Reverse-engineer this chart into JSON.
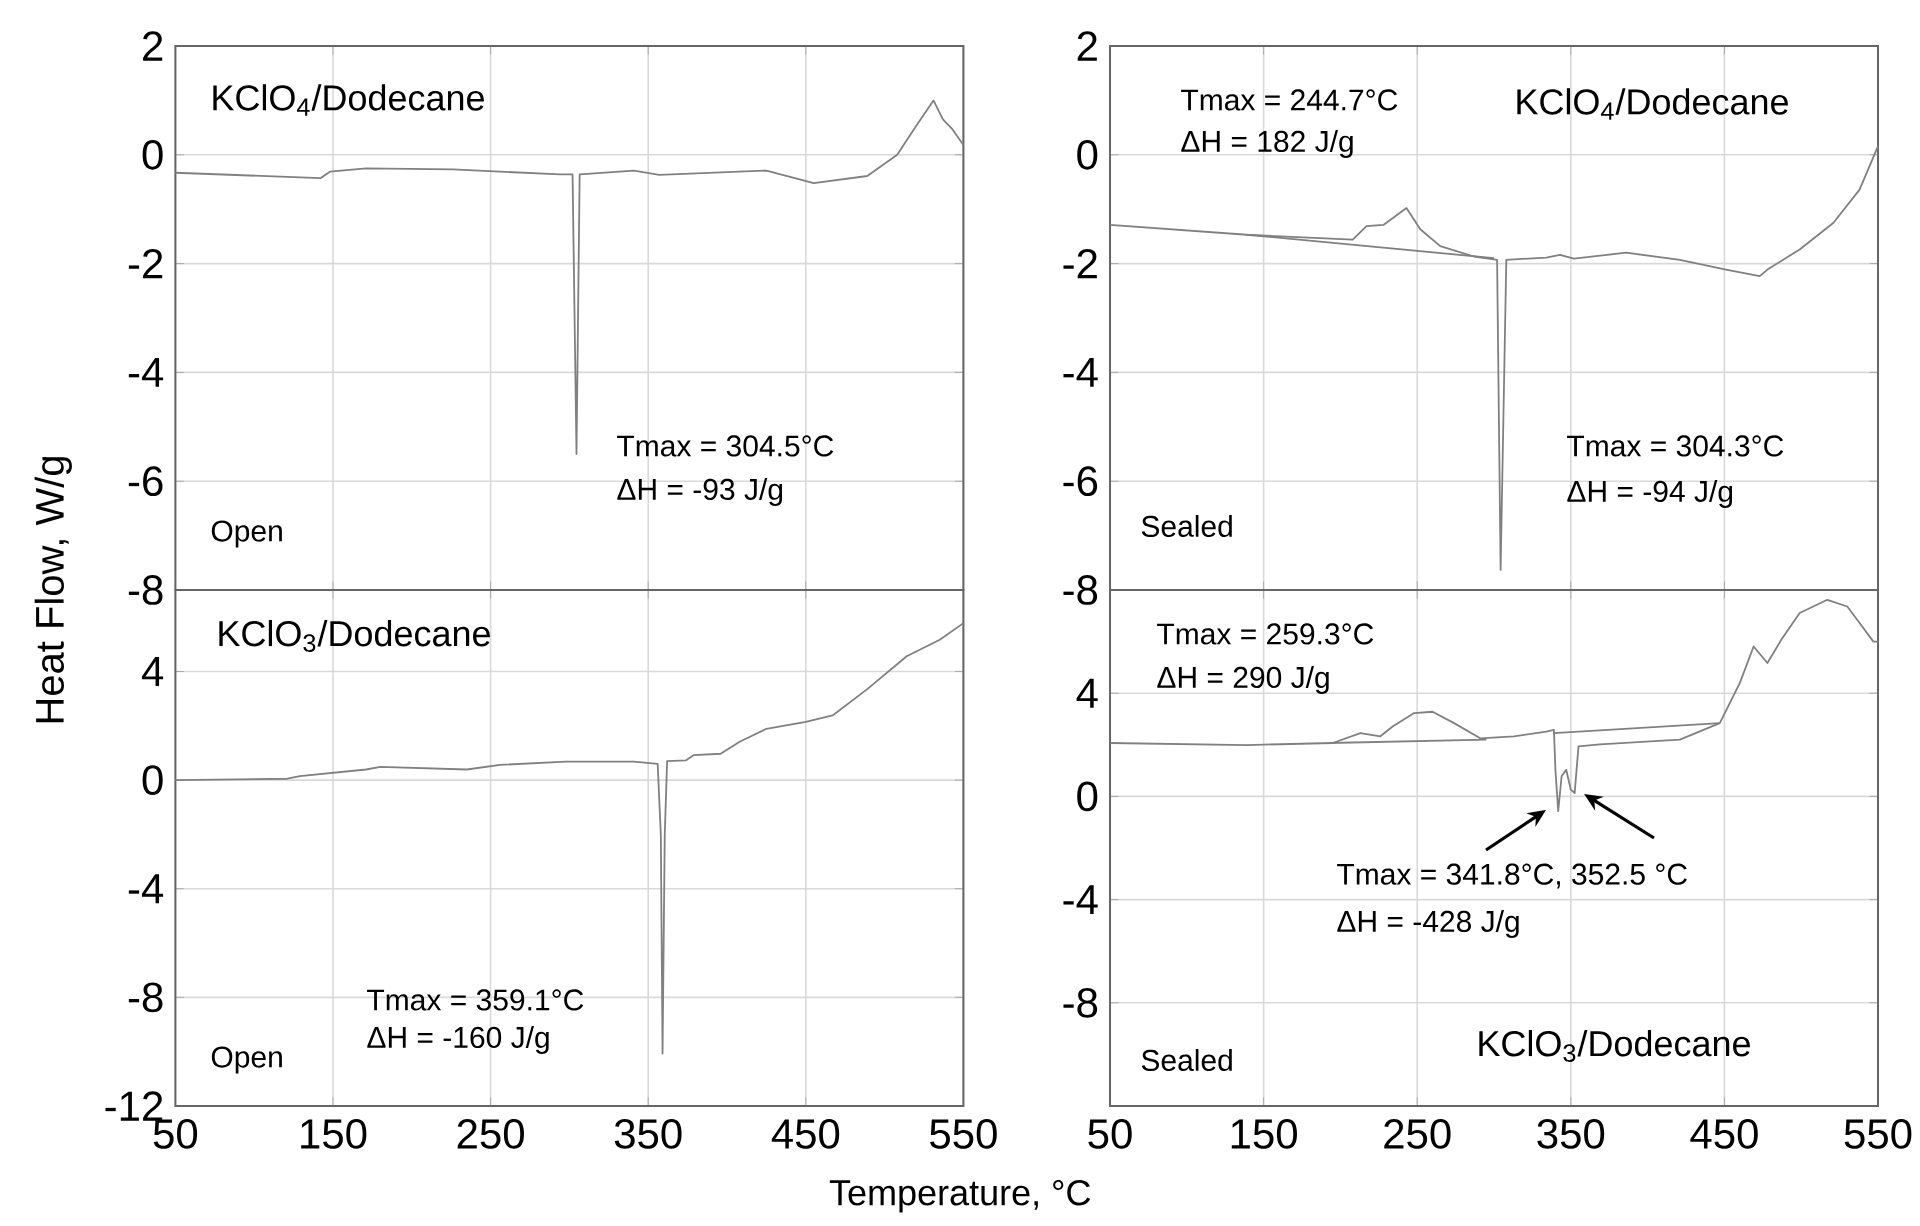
{
  "chart_data": [
    {
      "type": "line",
      "title": "KClO$_{4}$/Dodecane",
      "ylabel": "Heat Flow, W/g",
      "xlim": [
        50,
        550
      ],
      "xticks": [
        50,
        150,
        250,
        350,
        450,
        550
      ],
      "ylim": [
        -8,
        2
      ],
      "yticks": [
        -8,
        -6,
        -4,
        -2,
        0,
        2
      ],
      "grid": true,
      "tick_labels": "y",
      "annotations": [
        "Tmax = 304.5°C",
        "ΔH = -93 J/g",
        "Open"
      ],
      "series": [
        {
          "color": "#808080",
          "x": [
            50,
            142,
            148,
            171,
            226,
            294,
            302,
            304.5,
            306.5,
            341,
            357,
            425,
            455,
            489,
            508,
            520,
            531,
            537,
            543,
            550
          ],
          "values": [
            -0.33,
            -0.43,
            -0.31,
            -0.25,
            -0.27,
            -0.36,
            -0.36,
            -5.5,
            -0.36,
            -0.29,
            -0.37,
            -0.29,
            -0.52,
            -0.39,
            0.0,
            0.53,
            1.0,
            0.65,
            0.47,
            0.18
          ]
        }
      ]
    },
    {
      "type": "line",
      "title": "KClO$_{4}$/Dodecane",
      "xlim": [
        50,
        550
      ],
      "xticks": [
        50,
        150,
        250,
        350,
        450,
        550
      ],
      "ylim": [
        -8,
        2
      ],
      "yticks": [
        -8,
        -6,
        -4,
        -2,
        0,
        2
      ],
      "grid": true,
      "tick_labels": "y",
      "annotations": [
        "Tmax = 244.7°C",
        "ΔH = 182 J/g",
        "Tmax = 304.3°C",
        "ΔH = -94 J/g",
        "Sealed"
      ],
      "series": [
        {
          "color": "#808080",
          "x": [
            50,
            139,
            208,
            217,
            228,
            243,
            252,
            265,
            287,
            302,
            304.3,
            308,
            334,
            343,
            352,
            386,
            421,
            451,
            473,
            478,
            499,
            521,
            538,
            550
          ],
          "values": [
            -1.29,
            -1.47,
            -1.56,
            -1.31,
            -1.29,
            -0.98,
            -1.37,
            -1.68,
            -1.87,
            -1.93,
            -7.63,
            -1.93,
            -1.89,
            -1.84,
            -1.91,
            -1.8,
            -1.93,
            -2.11,
            -2.23,
            -2.11,
            -1.74,
            -1.25,
            -0.64,
            0.16
          ]
        },
        {
          "color": "#808080",
          "x": [
            139,
            300
          ],
          "values": [
            -1.47,
            -1.9
          ]
        }
      ]
    },
    {
      "type": "line",
      "title": "KClO$_{3}$/Dodecane",
      "xlabel": "Temperature, °C",
      "xlim": [
        50,
        550
      ],
      "xticks": [
        50,
        150,
        250,
        350,
        450,
        550
      ],
      "ylim": [
        -12,
        7
      ],
      "yticks": [
        -12,
        -8,
        -4,
        0,
        4
      ],
      "grid": true,
      "annotations": [
        "Tmax = 359.1°C",
        "ΔH = -160 J/g",
        "Open"
      ],
      "series": [
        {
          "color": "#808080",
          "x": [
            50,
            121,
            129,
            171,
            180,
            235,
            256,
            298,
            341,
            356,
            358,
            359.1,
            360.5,
            362,
            374,
            379,
            396,
            408,
            425,
            450,
            467,
            489,
            514,
            535,
            550
          ],
          "values": [
            0,
            0.05,
            0.15,
            0.39,
            0.49,
            0.39,
            0.56,
            0.68,
            0.68,
            0.6,
            -2,
            -10.07,
            -2,
            0.7,
            0.73,
            0.92,
            0.97,
            1.41,
            1.89,
            2.14,
            2.38,
            3.35,
            4.56,
            5.17,
            5.78
          ]
        }
      ]
    },
    {
      "type": "line",
      "title": "KClO$_{3}$/Dodecane",
      "xlim": [
        50,
        550
      ],
      "xticks": [
        50,
        150,
        250,
        350,
        450,
        550
      ],
      "ylim": [
        -12,
        8
      ],
      "yticks": [
        -8,
        -4,
        0,
        4
      ],
      "grid": true,
      "annotations": [
        "Tmax = 259.3°C",
        "ΔH = 290 J/g",
        "Tmax = 341.8°C,  352.5 °C",
        "ΔH = -428 J/g",
        "Sealed"
      ],
      "series": [
        {
          "color": "#808080",
          "x": [
            50,
            139,
            195,
            213,
            226,
            234,
            248,
            260,
            274,
            291,
            313,
            334,
            339,
            340,
            341.8,
            344,
            347,
            350,
            352.5,
            355,
            369,
            421,
            447,
            460,
            469,
            478,
            487,
            499,
            517,
            530,
            538,
            547,
            550
          ],
          "values": [
            2.07,
            1.99,
            2.07,
            2.45,
            2.33,
            2.71,
            3.23,
            3.28,
            2.84,
            2.25,
            2.33,
            2.51,
            2.58,
            1.0,
            -0.57,
            0.78,
            1.03,
            0.26,
            0.13,
            1.94,
            2.02,
            2.2,
            2.84,
            4.39,
            5.81,
            5.17,
            6.07,
            7.11,
            7.62,
            7.36,
            6.72,
            6.0,
            6.0
          ]
        },
        {
          "color": "#808080",
          "x": [
            193,
            295
          ],
          "values": [
            2.07,
            2.2
          ]
        },
        {
          "color": "#808080",
          "x": [
            339,
            447
          ],
          "values": [
            2.45,
            2.84
          ]
        }
      ]
    }
  ]
}
